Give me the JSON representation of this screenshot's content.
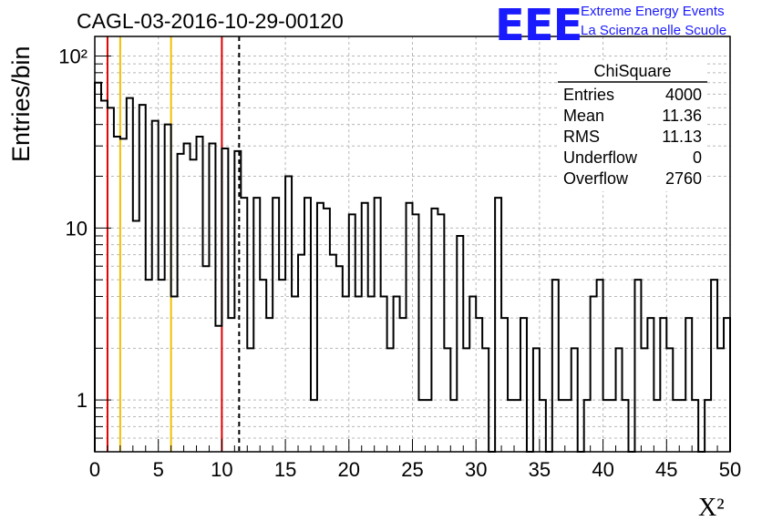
{
  "title": "CAGL-03-2016-10-29-00120",
  "logo": {
    "mark": "EEE",
    "line1": "Extreme Energy Events",
    "line2": "La Scienza nelle Scuole"
  },
  "stats": {
    "name": "ChiSquare",
    "rows": [
      {
        "label": "Entries",
        "value": "4000"
      },
      {
        "label": "Mean",
        "value": "11.36"
      },
      {
        "label": "RMS",
        "value": "11.13"
      },
      {
        "label": "Underflow",
        "value": "0"
      },
      {
        "label": "Overflow",
        "value": "2760"
      }
    ]
  },
  "chart_data": {
    "type": "histogram",
    "title": "CAGL-03-2016-10-29-00120",
    "xlabel": "X²",
    "ylabel": "Entries/bin",
    "xlim": [
      0,
      50
    ],
    "ylim": [
      0.5,
      130
    ],
    "yscale": "log",
    "grid": true,
    "bin_width": 0.5,
    "x_ticks": [
      "0",
      "5",
      "10",
      "15",
      "20",
      "25",
      "30",
      "35",
      "40",
      "45",
      "50"
    ],
    "y_ticks": [
      {
        "value": 1,
        "label": "1"
      },
      {
        "value": 10,
        "label": "10"
      },
      {
        "value": 100,
        "label": "10²"
      }
    ],
    "values": [
      70,
      55,
      50,
      34,
      33,
      57,
      11,
      52,
      5,
      42,
      5,
      40,
      4,
      27,
      31,
      25,
      34,
      6,
      31,
      2.7,
      29,
      3,
      28,
      15,
      2,
      15,
      5,
      3,
      15,
      5,
      20,
      4,
      7,
      15,
      1,
      14,
      13,
      7,
      6,
      4,
      12,
      4,
      14,
      4,
      15,
      4,
      2,
      4,
      3,
      14,
      12,
      1,
      1,
      13,
      12,
      2,
      1,
      9,
      2,
      4,
      3,
      2,
      0.5,
      15,
      3,
      1,
      1,
      3,
      0.5,
      2,
      1,
      0.5,
      5,
      1,
      1,
      2,
      0.5,
      1,
      4,
      5,
      1,
      1,
      2,
      1,
      0.5,
      5,
      2,
      3,
      1,
      3,
      2,
      1,
      1,
      3,
      1,
      0.5,
      1,
      5,
      2,
      3
    ],
    "vlines": [
      {
        "x": 1,
        "color": "#e00000",
        "style": "solid"
      },
      {
        "x": 2,
        "color": "#f0c000",
        "style": "solid"
      },
      {
        "x": 6,
        "color": "#f0c000",
        "style": "solid"
      },
      {
        "x": 10,
        "color": "#e00000",
        "style": "solid"
      },
      {
        "x": 11.36,
        "color": "#000000",
        "style": "dashed"
      }
    ]
  }
}
